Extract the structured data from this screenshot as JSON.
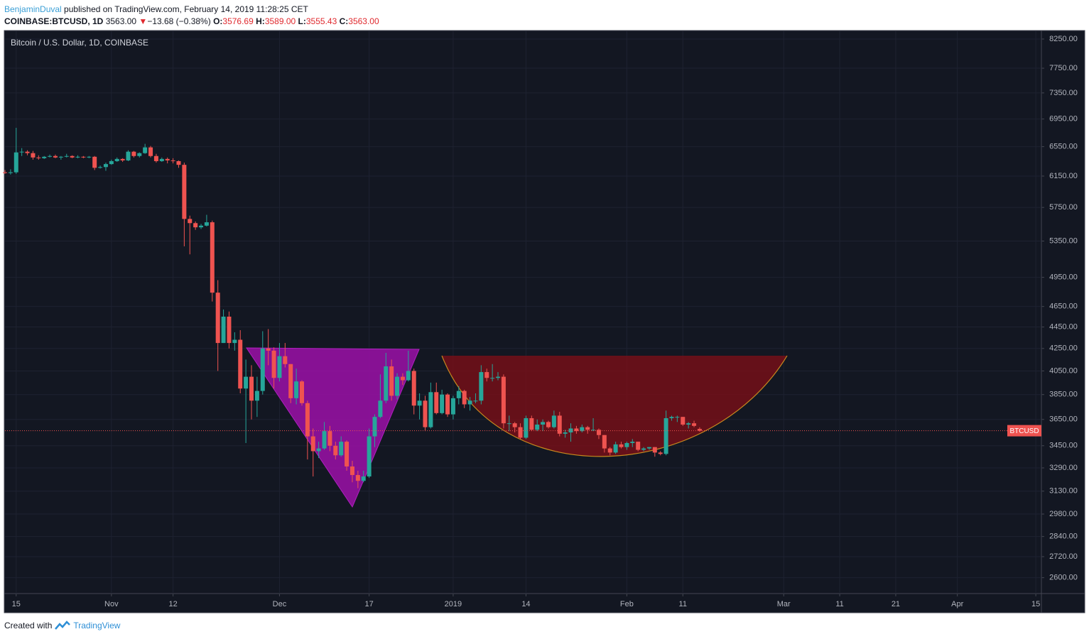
{
  "header": {
    "author": "BenjaminDuval",
    "published": " published on TradingView.com, February 14, 2019 11:28:25 CET",
    "symbol": "COINBASE:BTCUSD, 1D",
    "price": "3563.00",
    "arrow": "▼",
    "change": "−13.68 (−0.38%)",
    "ohlc": [
      {
        "key": "O:",
        "value": "3576.69"
      },
      {
        "key": "H:",
        "value": "3589.00"
      },
      {
        "key": "L:",
        "value": "3555.43"
      },
      {
        "key": "C:",
        "value": "3563.00"
      }
    ]
  },
  "footer": {
    "text": "Created with",
    "brand": "TradingView"
  },
  "chart_data": {
    "type": "candlestick",
    "title": "Bitcoin / U.S. Dollar, 1D, COINBASE",
    "up_color": "#26a69a",
    "down_color": "#ef5350",
    "log_scale": true,
    "grid": true,
    "price_line_label": "BTCUSD",
    "ylim": [
      2513,
      8389
    ],
    "yticks": [
      {
        "value": 8250,
        "label": "8250.00"
      },
      {
        "value": 7750,
        "label": "7750.00"
      },
      {
        "value": 7350,
        "label": "7350.00"
      },
      {
        "value": 6950,
        "label": "6950.00"
      },
      {
        "value": 6550,
        "label": "6550.00"
      },
      {
        "value": 6150,
        "label": "6150.00"
      },
      {
        "value": 5750,
        "label": "5750.00"
      },
      {
        "value": 5350,
        "label": "5350.00"
      },
      {
        "value": 4950,
        "label": "4950.00"
      },
      {
        "value": 4650,
        "label": "4650.00"
      },
      {
        "value": 4450,
        "label": "4450.00"
      },
      {
        "value": 4250,
        "label": "4250.00"
      },
      {
        "value": 4050,
        "label": "4050.00"
      },
      {
        "value": 3850,
        "label": "3850.00"
      },
      {
        "value": 3650,
        "label": "3650.00"
      },
      {
        "value": 3450,
        "label": "3450.00"
      },
      {
        "value": 3290,
        "label": "3290.00"
      },
      {
        "value": 3130,
        "label": "3130.00"
      },
      {
        "value": 2980,
        "label": "2980.00"
      },
      {
        "value": 2840,
        "label": "2840.00"
      },
      {
        "value": 2720,
        "label": "2720.00"
      },
      {
        "value": 2600,
        "label": "2600.00"
      }
    ],
    "xlim": [
      "2018-10-13",
      "2019-04-16"
    ],
    "xticks": [
      {
        "value": "2018-10-15",
        "label": "15"
      },
      {
        "value": "2018-11-01",
        "label": "Nov"
      },
      {
        "value": "2018-11-12",
        "label": "12"
      },
      {
        "value": "2018-12-01",
        "label": "Dec"
      },
      {
        "value": "2018-12-17",
        "label": "17"
      },
      {
        "value": "2019-01-01",
        "label": "2019"
      },
      {
        "value": "2019-01-14",
        "label": "14"
      },
      {
        "value": "2019-02-01",
        "label": "Feb"
      },
      {
        "value": "2019-02-11",
        "label": "11"
      },
      {
        "value": "2019-03-01",
        "label": "Mar"
      },
      {
        "value": "2019-03-11",
        "label": "11"
      },
      {
        "value": "2019-03-21",
        "label": "21"
      },
      {
        "value": "2019-04-01",
        "label": "Apr"
      },
      {
        "value": "2019-04-15",
        "label": "15"
      }
    ],
    "x": [
      "2018-10-13",
      "2018-10-14",
      "2018-10-15",
      "2018-10-16",
      "2018-10-17",
      "2018-10-18",
      "2018-10-19",
      "2018-10-20",
      "2018-10-21",
      "2018-10-22",
      "2018-10-23",
      "2018-10-24",
      "2018-10-25",
      "2018-10-26",
      "2018-10-27",
      "2018-10-28",
      "2018-10-29",
      "2018-10-30",
      "2018-10-31",
      "2018-11-01",
      "2018-11-02",
      "2018-11-03",
      "2018-11-04",
      "2018-11-05",
      "2018-11-06",
      "2018-11-07",
      "2018-11-08",
      "2018-11-09",
      "2018-11-10",
      "2018-11-11",
      "2018-11-12",
      "2018-11-13",
      "2018-11-14",
      "2018-11-15",
      "2018-11-16",
      "2018-11-17",
      "2018-11-18",
      "2018-11-19",
      "2018-11-20",
      "2018-11-21",
      "2018-11-22",
      "2018-11-23",
      "2018-11-24",
      "2018-11-25",
      "2018-11-26",
      "2018-11-27",
      "2018-11-28",
      "2018-11-29",
      "2018-11-30",
      "2018-12-01",
      "2018-12-02",
      "2018-12-03",
      "2018-12-04",
      "2018-12-05",
      "2018-12-06",
      "2018-12-07",
      "2018-12-08",
      "2018-12-09",
      "2018-12-10",
      "2018-12-11",
      "2018-12-12",
      "2018-12-13",
      "2018-12-14",
      "2018-12-15",
      "2018-12-16",
      "2018-12-17",
      "2018-12-18",
      "2018-12-19",
      "2018-12-20",
      "2018-12-21",
      "2018-12-22",
      "2018-12-23",
      "2018-12-24",
      "2018-12-25",
      "2018-12-26",
      "2018-12-27",
      "2018-12-28",
      "2018-12-29",
      "2018-12-30",
      "2018-12-31",
      "2019-01-01",
      "2019-01-02",
      "2019-01-03",
      "2019-01-04",
      "2019-01-05",
      "2019-01-06",
      "2019-01-07",
      "2019-01-08",
      "2019-01-09",
      "2019-01-10",
      "2019-01-11",
      "2019-01-12",
      "2019-01-13",
      "2019-01-14",
      "2019-01-15",
      "2019-01-16",
      "2019-01-17",
      "2019-01-18",
      "2019-01-19",
      "2019-01-20",
      "2019-01-21",
      "2019-01-22",
      "2019-01-23",
      "2019-01-24",
      "2019-01-25",
      "2019-01-26",
      "2019-01-27",
      "2019-01-28",
      "2019-01-29",
      "2019-01-30",
      "2019-01-31",
      "2019-02-01",
      "2019-02-02",
      "2019-02-03",
      "2019-02-04",
      "2019-02-05",
      "2019-02-06",
      "2019-02-07",
      "2019-02-08",
      "2019-02-09",
      "2019-02-10",
      "2019-02-11",
      "2019-02-12",
      "2019-02-13",
      "2019-02-14"
    ],
    "ohlc": [
      [
        6200,
        6230,
        6180,
        6190
      ],
      [
        6190,
        6240,
        6170,
        6200
      ],
      [
        6200,
        6820,
        6180,
        6470
      ],
      [
        6470,
        6530,
        6420,
        6480
      ],
      [
        6480,
        6500,
        6430,
        6460
      ],
      [
        6460,
        6490,
        6370,
        6400
      ],
      [
        6400,
        6430,
        6370,
        6390
      ],
      [
        6390,
        6420,
        6380,
        6410
      ],
      [
        6410,
        6440,
        6400,
        6420
      ],
      [
        6420,
        6440,
        6390,
        6400
      ],
      [
        6400,
        6420,
        6370,
        6410
      ],
      [
        6410,
        6450,
        6400,
        6420
      ],
      [
        6420,
        6430,
        6390,
        6400
      ],
      [
        6400,
        6430,
        6390,
        6410
      ],
      [
        6410,
        6420,
        6390,
        6400
      ],
      [
        6400,
        6420,
        6390,
        6410
      ],
      [
        6410,
        6420,
        6230,
        6260
      ],
      [
        6260,
        6290,
        6250,
        6270
      ],
      [
        6270,
        6330,
        6220,
        6310
      ],
      [
        6310,
        6370,
        6300,
        6350
      ],
      [
        6350,
        6400,
        6340,
        6380
      ],
      [
        6380,
        6390,
        6340,
        6360
      ],
      [
        6360,
        6500,
        6350,
        6480
      ],
      [
        6480,
        6490,
        6400,
        6420
      ],
      [
        6420,
        6470,
        6400,
        6460
      ],
      [
        6460,
        6590,
        6450,
        6540
      ],
      [
        6540,
        6560,
        6400,
        6420
      ],
      [
        6420,
        6450,
        6330,
        6350
      ],
      [
        6350,
        6400,
        6340,
        6380
      ],
      [
        6380,
        6400,
        6320,
        6360
      ],
      [
        6360,
        6390,
        6320,
        6350
      ],
      [
        6350,
        6360,
        6260,
        6300
      ],
      [
        6300,
        6330,
        5290,
        5610
      ],
      [
        5610,
        5650,
        5200,
        5560
      ],
      [
        5560,
        5580,
        5480,
        5510
      ],
      [
        5510,
        5550,
        5490,
        5530
      ],
      [
        5530,
        5660,
        5520,
        5570
      ],
      [
        5570,
        5590,
        4700,
        4790
      ],
      [
        4790,
        4920,
        4050,
        4300
      ],
      [
        4300,
        4620,
        4300,
        4550
      ],
      [
        4550,
        4600,
        4250,
        4300
      ],
      [
        4300,
        4400,
        4230,
        4330
      ],
      [
        4330,
        4420,
        3860,
        3900
      ],
      [
        3900,
        4150,
        3470,
        4000
      ],
      [
        4000,
        4100,
        3650,
        3800
      ],
      [
        3800,
        4000,
        3670,
        3880
      ],
      [
        3880,
        4410,
        3850,
        4250
      ],
      [
        4250,
        4430,
        4100,
        4230
      ],
      [
        4230,
        4260,
        3900,
        3990
      ],
      [
        3990,
        4300,
        3960,
        4180
      ],
      [
        4180,
        4300,
        4080,
        4110
      ],
      [
        4110,
        4110,
        3780,
        3820
      ],
      [
        3820,
        4070,
        3770,
        3960
      ],
      [
        3960,
        3970,
        3760,
        3780
      ],
      [
        3780,
        3800,
        3350,
        3520
      ],
      [
        3520,
        3580,
        3230,
        3410
      ],
      [
        3410,
        3480,
        3360,
        3430
      ],
      [
        3430,
        3630,
        3420,
        3560
      ],
      [
        3560,
        3600,
        3410,
        3450
      ],
      [
        3450,
        3480,
        3350,
        3380
      ],
      [
        3380,
        3520,
        3370,
        3480
      ],
      [
        3480,
        3490,
        3270,
        3300
      ],
      [
        3300,
        3340,
        3190,
        3240
      ],
      [
        3240,
        3270,
        3150,
        3200
      ],
      [
        3200,
        3270,
        3190,
        3230
      ],
      [
        3230,
        3580,
        3220,
        3520
      ],
      [
        3520,
        3690,
        3440,
        3670
      ],
      [
        3670,
        4020,
        3660,
        3800
      ],
      [
        3800,
        4210,
        3780,
        4090
      ],
      [
        4090,
        4150,
        3800,
        3840
      ],
      [
        3840,
        4030,
        3810,
        4000
      ],
      [
        4000,
        4030,
        3930,
        3970
      ],
      [
        3970,
        4230,
        3960,
        4050
      ],
      [
        4050,
        4070,
        3690,
        3760
      ],
      [
        3760,
        3860,
        3650,
        3800
      ],
      [
        3800,
        3840,
        3560,
        3590
      ],
      [
        3590,
        3950,
        3580,
        3870
      ],
      [
        3870,
        3950,
        3690,
        3700
      ],
      [
        3700,
        3890,
        3690,
        3850
      ],
      [
        3850,
        3860,
        3670,
        3690
      ],
      [
        3690,
        3840,
        3650,
        3820
      ],
      [
        3820,
        3920,
        3770,
        3880
      ],
      [
        3880,
        3890,
        3740,
        3770
      ],
      [
        3770,
        3830,
        3720,
        3800
      ],
      [
        3800,
        3860,
        3780,
        3800
      ],
      [
        3800,
        4100,
        3770,
        4040
      ],
      [
        4040,
        4070,
        3960,
        3990
      ],
      [
        3990,
        4110,
        3960,
        3990
      ],
      [
        3990,
        4040,
        3970,
        4000
      ],
      [
        4000,
        4020,
        3580,
        3620
      ],
      [
        3620,
        3680,
        3560,
        3620
      ],
      [
        3620,
        3630,
        3550,
        3590
      ],
      [
        3590,
        3620,
        3500,
        3510
      ],
      [
        3510,
        3680,
        3500,
        3660
      ],
      [
        3660,
        3680,
        3560,
        3570
      ],
      [
        3570,
        3650,
        3560,
        3610
      ],
      [
        3610,
        3650,
        3560,
        3630
      ],
      [
        3630,
        3640,
        3580,
        3590
      ],
      [
        3590,
        3720,
        3580,
        3680
      ],
      [
        3680,
        3710,
        3520,
        3540
      ],
      [
        3540,
        3570,
        3510,
        3550
      ],
      [
        3550,
        3620,
        3480,
        3580
      ],
      [
        3580,
        3600,
        3540,
        3560
      ],
      [
        3560,
        3610,
        3550,
        3590
      ],
      [
        3590,
        3600,
        3540,
        3570
      ],
      [
        3570,
        3660,
        3560,
        3570
      ],
      [
        3570,
        3580,
        3500,
        3530
      ],
      [
        3530,
        3530,
        3400,
        3430
      ],
      [
        3430,
        3440,
        3380,
        3400
      ],
      [
        3400,
        3480,
        3390,
        3460
      ],
      [
        3460,
        3480,
        3430,
        3440
      ],
      [
        3440,
        3480,
        3420,
        3470
      ],
      [
        3470,
        3500,
        3440,
        3480
      ],
      [
        3480,
        3480,
        3410,
        3420
      ],
      [
        3420,
        3440,
        3410,
        3430
      ],
      [
        3430,
        3440,
        3420,
        3440
      ],
      [
        3440,
        3440,
        3370,
        3400
      ],
      [
        3400,
        3410,
        3380,
        3390
      ],
      [
        3390,
        3720,
        3380,
        3660
      ],
      [
        3660,
        3680,
        3640,
        3670
      ],
      [
        3670,
        3680,
        3630,
        3670
      ],
      [
        3670,
        3670,
        3600,
        3610
      ],
      [
        3610,
        3630,
        3580,
        3620
      ],
      [
        3620,
        3640,
        3590,
        3600
      ],
      [
        3576.69,
        3589,
        3555.43,
        3563
      ]
    ]
  }
}
